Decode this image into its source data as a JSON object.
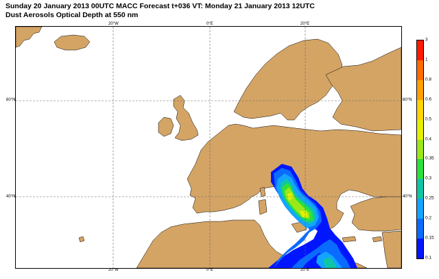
{
  "header": {
    "line1": "Sunday 20 January 2013 00UTC MACC Forecast t+036 VT: Monday 21 January 2013 12UTC",
    "line2": "Dust Aerosols Optical Depth at 550 nm"
  },
  "map": {
    "land_color": "#D4A465",
    "sea_color": "#FFFFFF",
    "lon_ticks": [
      "20°W",
      "0°E",
      "20°E"
    ],
    "lat_ticks": [
      "60°N",
      "40°N"
    ]
  },
  "colorbar": {
    "levels": [
      "0.1",
      "0.15",
      "0.2",
      "0.25",
      "0.3",
      "0.35",
      "0.4",
      "0.5",
      "0.6",
      "0.8",
      "1",
      "3"
    ],
    "colors": [
      "#0016FF",
      "#0A6BFF",
      "#13A4FF",
      "#0FC6A4",
      "#2EE03A",
      "#9BE81A",
      "#E4F000",
      "#FFD400",
      "#FFA000",
      "#FF6C00",
      "#FF1A00"
    ]
  }
}
